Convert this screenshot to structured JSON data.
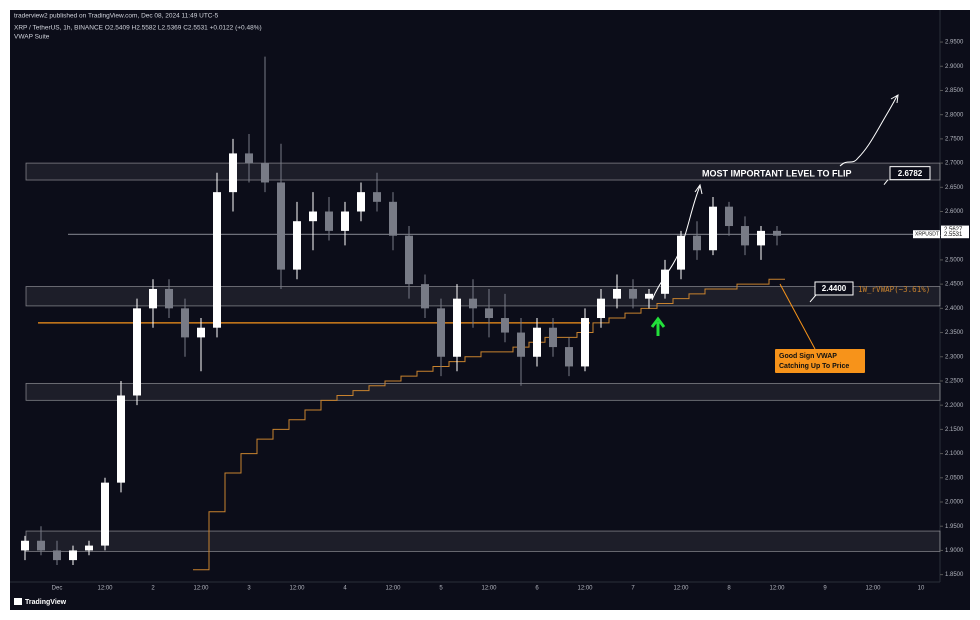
{
  "header": {
    "published": "traderview2 published on TradingView.com, Dec 08, 2024 11:49 UTC-5",
    "symbol": "XRP / TetherUS, 1h, BINANCE  O2.5409 H2.5582 L2.5369 C2.5531 +0.0122 (+0.48%)",
    "indicator": "VWAP Suite",
    "logo": "TradingView"
  },
  "chart_data": {
    "type": "candlestick",
    "categories": [
      null,
      null,
      "Dec",
      null,
      null,
      "12:00",
      null,
      null,
      "2",
      null,
      null,
      "12:00",
      null,
      null,
      "3",
      null,
      null,
      "12:00",
      null,
      null,
      "4",
      null,
      null,
      "12:00",
      null,
      null,
      "5",
      null,
      null,
      "12:00",
      null,
      null,
      "6",
      null,
      null,
      "12:00",
      null,
      null,
      "7",
      null,
      null,
      "12:00",
      null,
      null,
      "8",
      null,
      null,
      "12:00",
      null,
      null,
      "9",
      null,
      null,
      "12:00",
      null,
      null,
      "10"
    ],
    "open": [
      1.9,
      1.92,
      1.9,
      1.88,
      1.9,
      1.91,
      2.04,
      2.22,
      2.4,
      2.44,
      2.4,
      2.34,
      2.36,
      2.64,
      2.72,
      2.7,
      2.66,
      2.48,
      2.58,
      2.6,
      2.56,
      2.6,
      2.64,
      2.62,
      2.55,
      2.45,
      2.4,
      2.3,
      2.42,
      2.4,
      2.38,
      2.35,
      2.3,
      2.36,
      2.32,
      2.28,
      2.38,
      2.42,
      2.44,
      2.42,
      2.43,
      2.48,
      2.55,
      2.52,
      2.61,
      2.57,
      2.53,
      2.56,
      null,
      null,
      null,
      null,
      null,
      null,
      null,
      null,
      null
    ],
    "high": [
      1.93,
      1.95,
      1.92,
      1.91,
      1.92,
      2.05,
      2.25,
      2.42,
      2.46,
      2.46,
      2.42,
      2.38,
      2.68,
      2.75,
      2.76,
      2.92,
      2.74,
      2.62,
      2.64,
      2.63,
      2.62,
      2.66,
      2.68,
      2.64,
      2.57,
      2.47,
      2.42,
      2.45,
      2.46,
      2.44,
      2.43,
      2.38,
      2.38,
      2.38,
      2.34,
      2.4,
      2.44,
      2.47,
      2.46,
      2.44,
      2.5,
      2.56,
      2.58,
      2.63,
      2.62,
      2.59,
      2.57,
      2.57,
      null,
      null,
      null,
      null,
      null,
      null,
      null,
      null,
      null
    ],
    "low": [
      1.88,
      1.89,
      1.87,
      1.87,
      1.89,
      1.9,
      2.02,
      2.2,
      2.36,
      2.38,
      2.3,
      2.27,
      2.34,
      2.6,
      2.66,
      2.64,
      2.44,
      2.46,
      2.52,
      2.54,
      2.53,
      2.58,
      2.6,
      2.52,
      2.42,
      2.38,
      2.26,
      2.27,
      2.36,
      2.34,
      2.33,
      2.24,
      2.28,
      2.3,
      2.26,
      2.27,
      2.36,
      2.4,
      2.4,
      2.4,
      2.42,
      2.46,
      2.5,
      2.51,
      2.55,
      2.51,
      2.5,
      2.53,
      null,
      null,
      null,
      null,
      null,
      null,
      null,
      null,
      null
    ],
    "close": [
      1.92,
      1.9,
      1.88,
      1.9,
      1.91,
      2.04,
      2.22,
      2.4,
      2.44,
      2.4,
      2.34,
      2.36,
      2.64,
      2.72,
      2.7,
      2.66,
      2.48,
      2.58,
      2.6,
      2.56,
      2.6,
      2.64,
      2.62,
      2.55,
      2.45,
      2.4,
      2.3,
      2.42,
      2.4,
      2.38,
      2.35,
      2.3,
      2.36,
      2.32,
      2.28,
      2.38,
      2.42,
      2.44,
      2.42,
      2.43,
      2.48,
      2.55,
      2.52,
      2.61,
      2.57,
      2.53,
      2.56,
      2.55,
      null,
      null,
      null,
      null,
      null,
      null,
      null,
      null,
      null
    ],
    "up_color": "#ffffff",
    "down_color": "#787b86",
    "vwap": {
      "name": "1W_rVWAP(~3.61%)",
      "color": "#c8822e",
      "values": [
        null,
        null,
        null,
        null,
        null,
        null,
        null,
        null,
        null,
        null,
        null,
        1.86,
        1.98,
        2.06,
        2.1,
        2.13,
        2.15,
        2.17,
        2.19,
        2.21,
        2.22,
        2.23,
        2.24,
        2.25,
        2.26,
        2.27,
        2.28,
        2.29,
        2.3,
        2.31,
        2.31,
        2.32,
        2.33,
        2.34,
        2.34,
        2.35,
        2.37,
        2.38,
        2.39,
        2.4,
        2.41,
        2.42,
        2.43,
        2.44,
        2.44,
        2.45,
        2.45,
        2.46,
        null,
        null,
        null,
        null,
        null,
        null,
        null,
        null,
        null
      ]
    },
    "zones": [
      {
        "from": 2.665,
        "to": 2.7
      },
      {
        "from": 2.405,
        "to": 2.445
      },
      {
        "from": 2.21,
        "to": 2.245
      },
      {
        "from": 1.898,
        "to": 1.94
      }
    ],
    "level": {
      "value": 2.37,
      "color": "#f7931a"
    },
    "price_labels": [
      2.5627,
      {
        "value": 2.5531,
        "label": "2.5531"
      }
    ],
    "symbol_tag": "XRPUSDT",
    "annotations": {
      "flip_text": "MOST IMPORTANT LEVEL TO FLIP",
      "flip_level": 2.6782,
      "vwap_level": {
        "value": 2.44,
        "label": "2.4400"
      },
      "callout": [
        "Good Sign VWAP",
        "Catching Up To Price"
      ]
    },
    "ylim": [
      1.81,
      3.01
    ],
    "yticks": [
      {
        "value": 1.85,
        "label": "1.8500"
      },
      {
        "value": 1.9,
        "label": "1.9000"
      },
      {
        "value": 1.95,
        "label": "1.9500"
      },
      {
        "value": 2.0,
        "label": "2.0000"
      },
      {
        "value": 2.05,
        "label": "2.0500"
      },
      {
        "value": 2.1,
        "label": "2.1000"
      },
      {
        "value": 2.15,
        "label": "2.1500"
      },
      {
        "value": 2.2,
        "label": "2.2000"
      },
      {
        "value": 2.25,
        "label": "2.2500"
      },
      {
        "value": 2.3,
        "label": "2.3000"
      },
      {
        "value": 2.35,
        "label": "2.3500"
      },
      {
        "value": 2.4,
        "label": "2.4000"
      },
      {
        "value": 2.45,
        "label": "2.4500"
      },
      {
        "value": 2.5,
        "label": "2.5000"
      },
      {
        "value": 2.55,
        "label": "2.5500"
      },
      {
        "value": 2.6,
        "label": "2.6000"
      },
      {
        "value": 2.65,
        "label": "2.6500"
      },
      {
        "value": 2.7,
        "label": "2.7000"
      },
      {
        "value": 2.75,
        "label": "2.7500"
      },
      {
        "value": 2.8,
        "label": "2.8000"
      },
      {
        "value": 2.85,
        "label": "2.8500"
      },
      {
        "value": 2.9,
        "label": "2.9000"
      },
      {
        "value": 2.95,
        "label": "2.9500"
      }
    ]
  }
}
